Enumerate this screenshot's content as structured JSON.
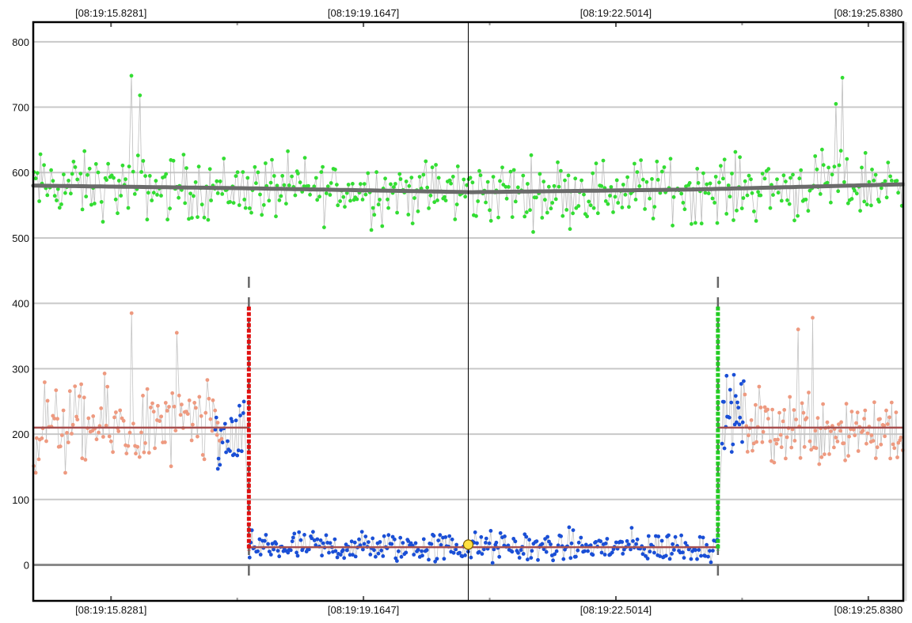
{
  "chart_data": {
    "type": "scatter",
    "title": "",
    "xlabel": "",
    "ylabel": "",
    "x_range_seconds": [
      14.8,
      26.3
    ],
    "ylim": [
      -55,
      830
    ],
    "y_ticks": [
      "800",
      "700",
      "600",
      "500",
      "400",
      "300",
      "200",
      "100",
      "0"
    ],
    "y_tick_values": [
      800,
      700,
      600,
      500,
      400,
      300,
      200,
      100,
      0
    ],
    "x_ticks_top": [
      "[08:19:15.8281]",
      "[08:19:19.1647]",
      "[08:19:22.5014]",
      "[08:19:25.8380"
    ],
    "x_ticks_bottom": [
      "[08:19:15.8281]",
      "[08:19:19.1647]",
      "[08:19:22.5014]",
      "[08:19:25.8380"
    ],
    "x_tick_seconds": [
      15.8281,
      19.1647,
      22.5014,
      25.838
    ],
    "grid": true,
    "colors": {
      "upper_series": "#33dd33",
      "baseline_series": "#ee9a80",
      "event_series": "#1a4fd6",
      "upper_trend": "#6b6b6b",
      "baseline_fit": "#a85050",
      "start_marker": "#e01010",
      "end_marker": "#22cc22",
      "cursor_point": "#ffe040"
    },
    "series": [
      {
        "role": "upper",
        "mean": 575,
        "spread": 45,
        "n": 500,
        "x_range": [
          14.8,
          26.3
        ],
        "trend": [
          [
            14.8,
            580
          ],
          [
            17.6,
            576
          ],
          [
            20.6,
            570
          ],
          [
            23.5,
            574
          ],
          [
            26.3,
            582
          ]
        ],
        "peaks": [
          [
            16.1,
            748
          ],
          [
            16.2,
            718
          ],
          [
            25.5,
            745
          ],
          [
            25.4,
            705
          ]
        ]
      },
      {
        "role": "baseline-left",
        "mean": 210,
        "spread": 60,
        "n": 120,
        "x_range": [
          14.8,
          17.3
        ],
        "fit": 210,
        "peaks": [
          [
            16.1,
            385
          ],
          [
            16.7,
            355
          ]
        ]
      },
      {
        "role": "transition-left",
        "mean": 190,
        "spread": 50,
        "n": 25,
        "x_range": [
          17.2,
          17.6
        ]
      },
      {
        "role": "event",
        "mean": 27,
        "spread": 22,
        "n": 330,
        "x_range": [
          17.65,
          23.85
        ],
        "fit": 27
      },
      {
        "role": "transition-right",
        "mean": 230,
        "spread": 50,
        "n": 25,
        "x_range": [
          23.9,
          24.2
        ]
      },
      {
        "role": "baseline-right",
        "mean": 210,
        "spread": 55,
        "n": 120,
        "x_range": [
          24.2,
          26.3
        ],
        "fit": 210,
        "peaks": [
          [
            25.1,
            378
          ],
          [
            24.9,
            360
          ]
        ]
      }
    ],
    "event_start_seconds": 17.65,
    "event_end_seconds": 23.85,
    "event_marker_range": [
      22,
      395
    ],
    "cursor_x_seconds": 20.55,
    "cursor_point": {
      "x": 20.55,
      "y": 31
    }
  }
}
